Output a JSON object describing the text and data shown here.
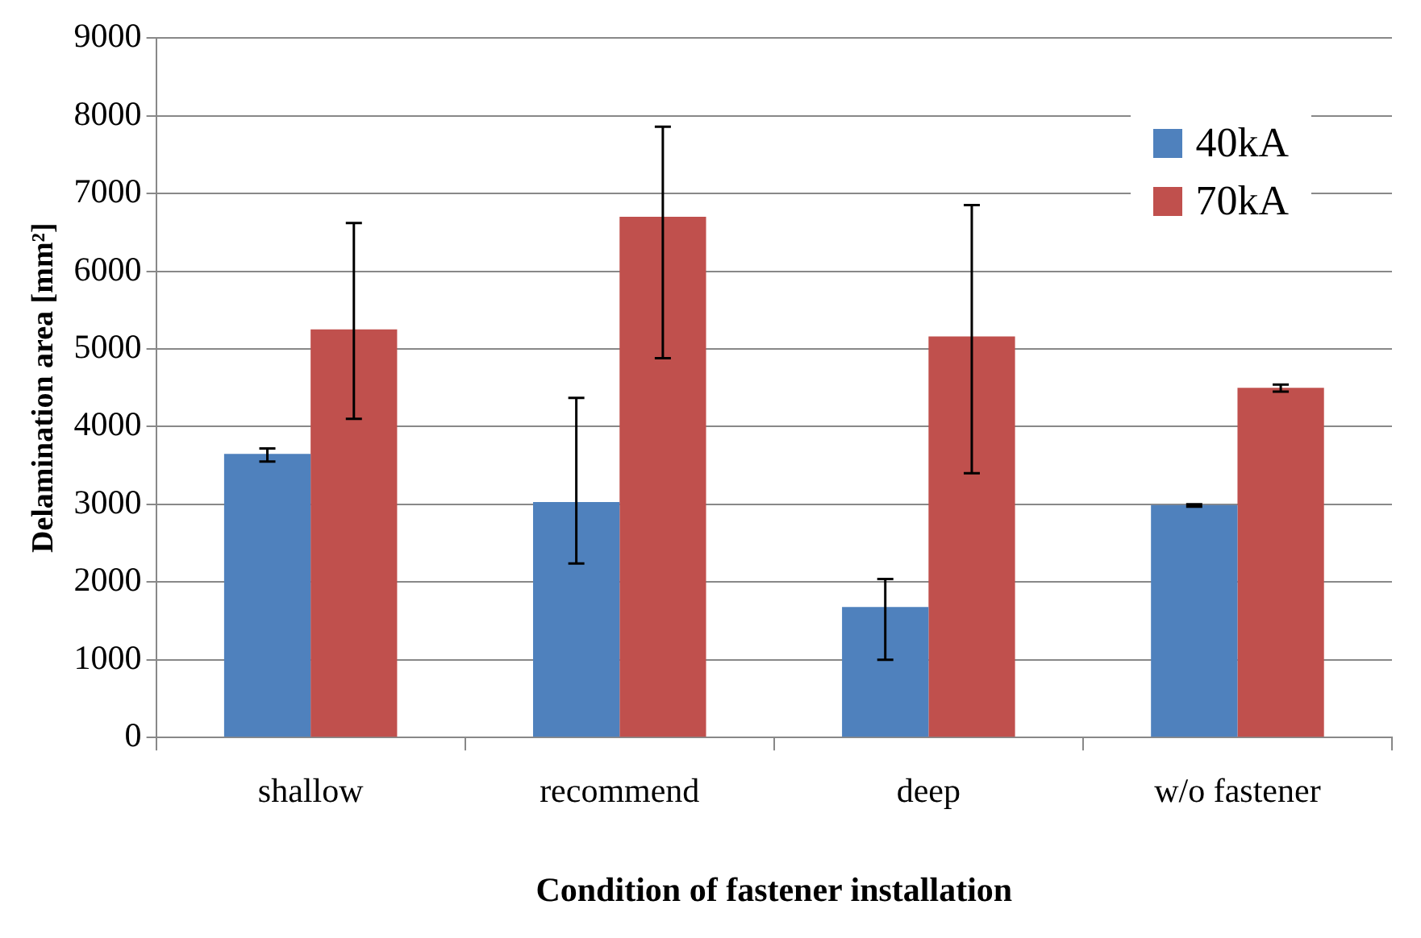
{
  "chart_data": {
    "type": "bar",
    "xlabel": "Condition of fastener installation",
    "ylabel": "Delamination area [mm²]",
    "categories": [
      "shallow",
      "recommend",
      "deep",
      "w/o fastener"
    ],
    "series": [
      {
        "name": "40kA",
        "color": "#4f81bd",
        "values": [
          3650,
          3030,
          1680,
          2990
        ],
        "errors": [
          [
            3550,
            3720
          ],
          [
            2240,
            4370
          ],
          [
            1000,
            2040
          ],
          [
            2970,
            3000
          ]
        ]
      },
      {
        "name": "70kA",
        "color": "#c0504d",
        "values": [
          5250,
          6700,
          5160,
          4500
        ],
        "errors": [
          [
            4100,
            6620
          ],
          [
            4880,
            7860
          ],
          [
            3400,
            6850
          ],
          [
            4450,
            4540
          ]
        ]
      }
    ],
    "ylim": [
      0,
      9000
    ],
    "yticks": [
      0,
      1000,
      2000,
      3000,
      4000,
      5000,
      6000,
      7000,
      8000,
      9000
    ],
    "grid": "y",
    "legend": "top right"
  }
}
